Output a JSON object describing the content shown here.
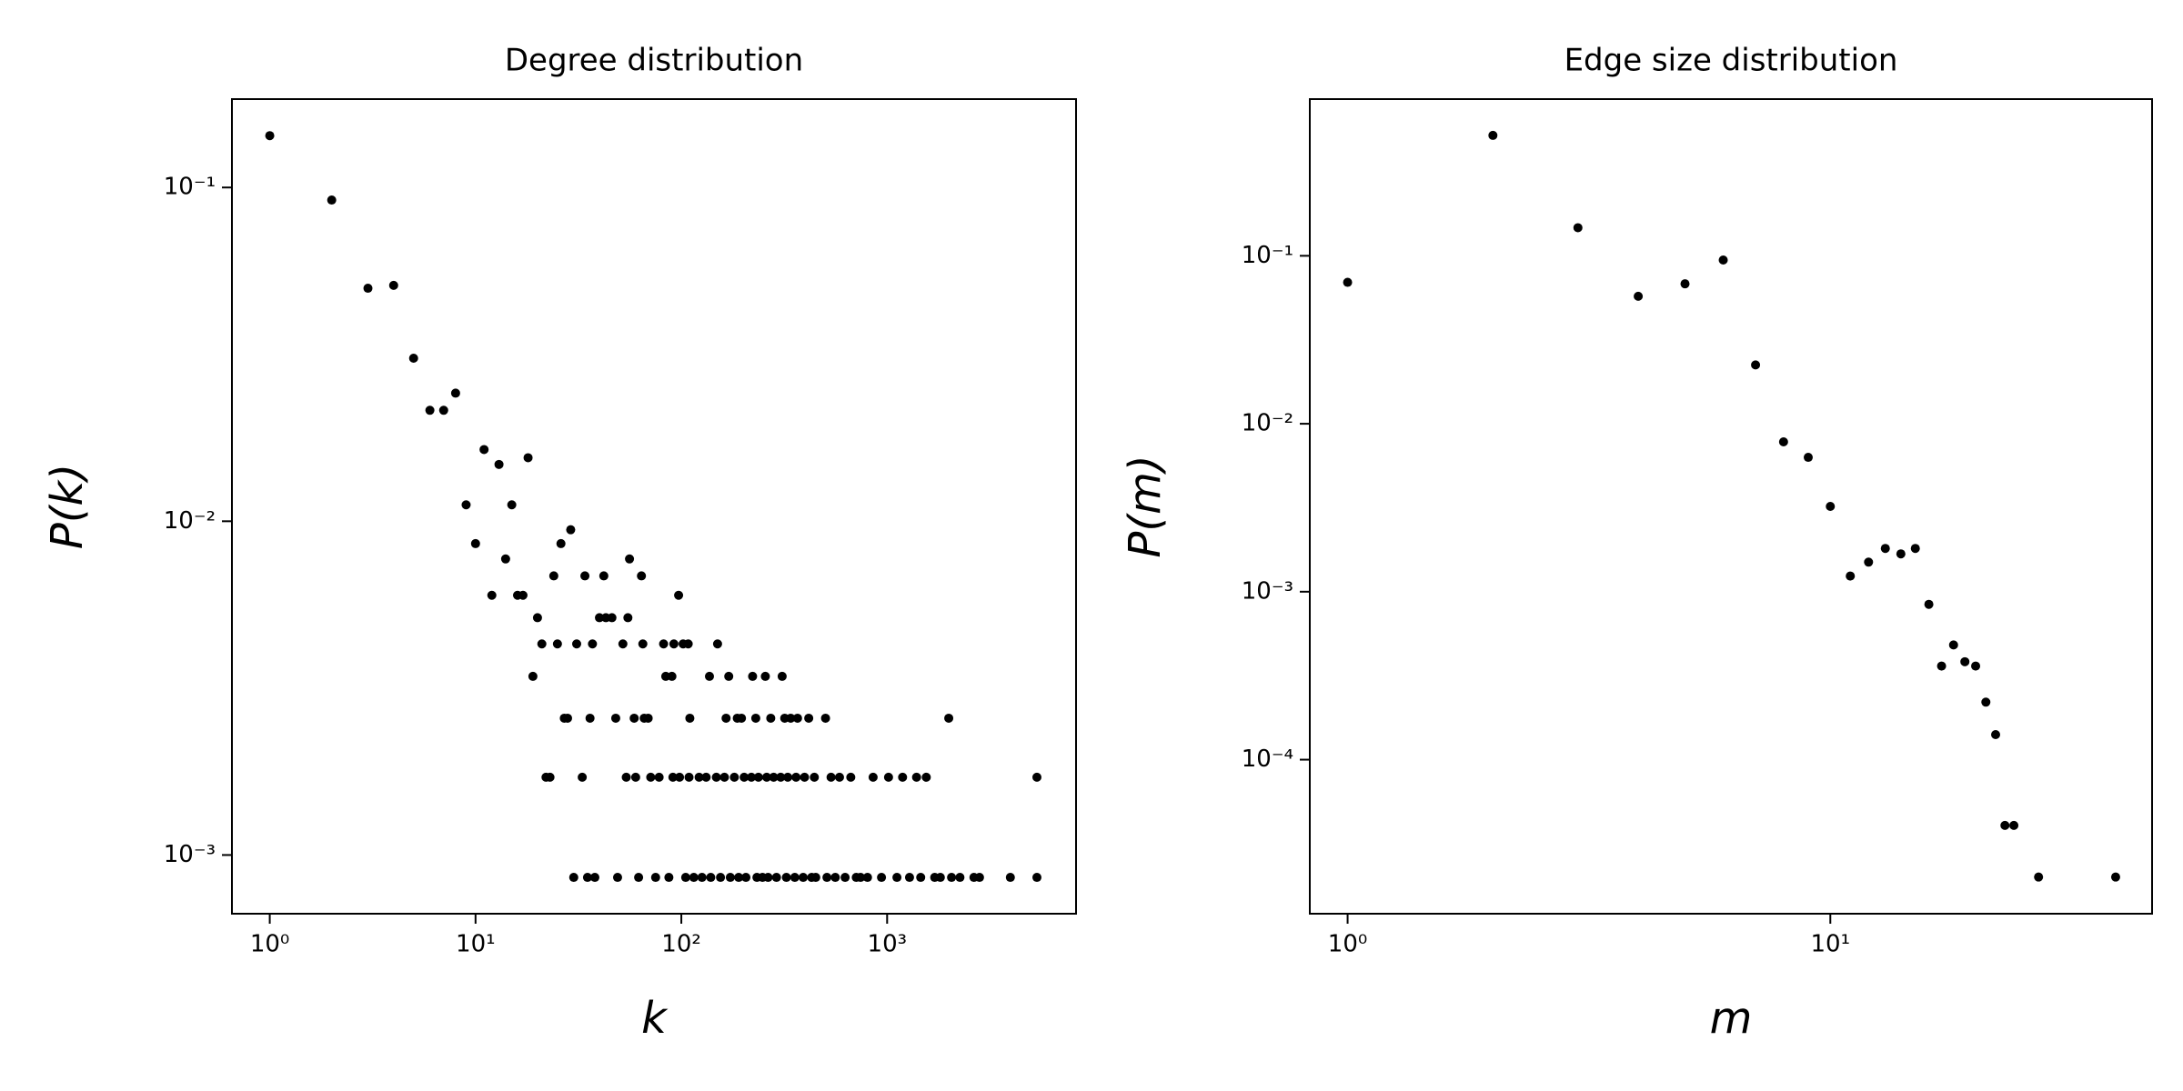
{
  "chart_data": [
    {
      "type": "scatter",
      "title": "Degree distribution",
      "x_label": "k",
      "y_label": "P(k)",
      "color": "#000000",
      "log_x": true,
      "log_y": true,
      "xlim": [
        0.655,
        8280
      ],
      "ylim": [
        0.000667,
        0.184
      ],
      "xticks": [
        {
          "value": 1,
          "label": "10⁰"
        },
        {
          "value": 10,
          "label": "10¹"
        },
        {
          "value": 100,
          "label": "10²"
        },
        {
          "value": 1000,
          "label": "10³"
        }
      ],
      "yticks": [
        {
          "value": 0.1,
          "label": "10⁻¹"
        },
        {
          "value": 0.01,
          "label": "10⁻²"
        },
        {
          "value": 0.001,
          "label": "10⁻³"
        }
      ],
      "x": [
        1,
        2,
        3,
        4,
        5,
        6,
        7,
        8,
        9,
        10,
        11,
        12,
        13,
        14,
        15,
        16,
        17,
        18,
        19,
        20,
        21,
        22,
        23,
        24,
        25,
        26,
        27,
        28,
        29,
        30,
        31,
        33,
        34,
        35,
        36,
        37,
        38,
        40,
        42,
        43,
        46,
        48,
        49,
        52,
        54,
        55,
        56,
        59,
        60,
        62,
        64,
        65,
        66,
        69,
        71,
        75,
        78,
        82,
        84,
        87,
        90,
        91,
        92,
        97,
        98,
        102,
        105,
        108,
        109,
        110,
        115,
        122,
        126,
        132,
        137,
        139,
        148,
        150,
        155,
        162,
        165,
        170,
        173,
        181,
        187,
        190,
        196,
        202,
        206,
        219,
        222,
        230,
        233,
        237,
        248,
        256,
        260,
        264,
        272,
        281,
        290,
        304,
        309,
        318,
        324,
        329,
        340,
        356,
        361,
        367,
        391,
        397,
        416,
        430,
        443,
        450,
        502,
        510,
        534,
        560,
        587,
        625,
        666,
        708,
        743,
        803,
        855,
        939,
        1016,
        1116,
        1189,
        1285,
        1390,
        1456,
        1550,
        1703,
        1814,
        1993,
        2056,
        2259,
        2642,
        2812,
        3971,
        5345,
        5345
      ],
      "values": [
        0.143,
        0.0917,
        0.0499,
        0.0509,
        0.0308,
        0.0215,
        0.0215,
        0.0242,
        0.0112,
        0.00857,
        0.0164,
        0.006,
        0.0148,
        0.00771,
        0.0112,
        0.006,
        0.006,
        0.0155,
        0.00343,
        0.00514,
        0.00429,
        0.00171,
        0.00171,
        0.00686,
        0.00429,
        0.00857,
        0.00257,
        0.00257,
        0.00943,
        0.000857,
        0.00429,
        0.00171,
        0.00686,
        0.000857,
        0.00257,
        0.00429,
        0.000857,
        0.00514,
        0.00686,
        0.00514,
        0.00514,
        0.00257,
        0.000857,
        0.00429,
        0.00171,
        0.00514,
        0.00771,
        0.00257,
        0.00171,
        0.000857,
        0.00686,
        0.00429,
        0.00257,
        0.00257,
        0.00171,
        0.000857,
        0.00171,
        0.00429,
        0.00343,
        0.000857,
        0.00343,
        0.00171,
        0.00429,
        0.006,
        0.00171,
        0.00429,
        0.000857,
        0.00429,
        0.00171,
        0.00257,
        0.000857,
        0.00171,
        0.000857,
        0.00171,
        0.00343,
        0.000857,
        0.00171,
        0.00429,
        0.000857,
        0.00171,
        0.00257,
        0.00343,
        0.000857,
        0.00171,
        0.00257,
        0.000857,
        0.00257,
        0.00171,
        0.000857,
        0.00171,
        0.00343,
        0.00257,
        0.000857,
        0.00171,
        0.000857,
        0.00343,
        0.00171,
        0.000857,
        0.00257,
        0.00171,
        0.000857,
        0.00171,
        0.00343,
        0.00257,
        0.000857,
        0.00171,
        0.00257,
        0.000857,
        0.00171,
        0.00257,
        0.000857,
        0.00171,
        0.00257,
        0.000857,
        0.00171,
        0.000857,
        0.00257,
        0.000857,
        0.00171,
        0.000857,
        0.00171,
        0.000857,
        0.00171,
        0.000857,
        0.000857,
        0.000857,
        0.00171,
        0.000857,
        0.00171,
        0.000857,
        0.00171,
        0.000857,
        0.00171,
        0.000857,
        0.00171,
        0.000857,
        0.000857,
        0.00257,
        0.000857,
        0.000857,
        0.000857,
        0.000857,
        0.000857,
        0.00171,
        0.000857
      ]
    },
    {
      "type": "scatter",
      "title": "Edge size distribution",
      "x_label": "m",
      "y_label": "P(m)",
      "color": "#000000",
      "log_x": true,
      "log_y": true,
      "xlim": [
        0.835,
        46.4
      ],
      "ylim": [
        1.21e-05,
        0.857
      ],
      "xticks": [
        {
          "value": 1,
          "label": "10⁰"
        },
        {
          "value": 10,
          "label": "10¹"
        }
      ],
      "yticks": [
        {
          "value": 0.1,
          "label": "10⁻¹"
        },
        {
          "value": 0.01,
          "label": "10⁻²"
        },
        {
          "value": 0.001,
          "label": "10⁻³"
        },
        {
          "value": 0.0001,
          "label": "10⁻⁴"
        }
      ],
      "x": [
        1,
        2,
        3,
        4,
        5,
        6,
        7,
        8,
        9,
        10,
        11,
        12,
        13,
        14,
        15,
        16,
        17,
        18,
        19,
        20,
        21,
        22,
        23,
        24,
        27,
        39
      ],
      "values": [
        0.0695,
        0.521,
        0.147,
        0.0574,
        0.0681,
        0.0944,
        0.0224,
        0.0078,
        0.00631,
        0.00322,
        0.00124,
        0.0015,
        0.00181,
        0.00168,
        0.00181,
        0.000841,
        0.000361,
        0.000482,
        0.000383,
        0.000361,
        0.00022,
        0.000141,
        4.06e-05,
        4.06e-05,
        2e-05,
        2e-05
      ]
    }
  ]
}
